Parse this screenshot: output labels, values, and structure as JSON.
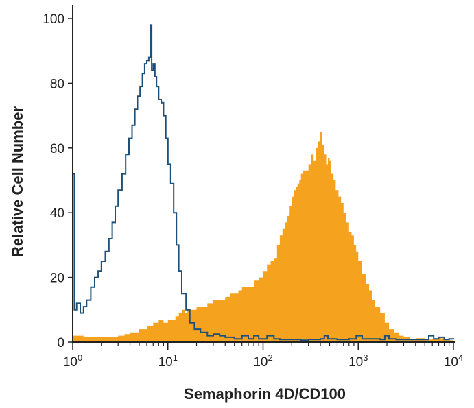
{
  "chart_data": {
    "type": "area",
    "xlabel": "Semaphorin 4D/CD100",
    "ylabel": "Relative Cell Number",
    "x_scale": "log10",
    "xlim": [
      1,
      10000
    ],
    "ylim": [
      0,
      100
    ],
    "x_ticks": [
      {
        "value": 1,
        "base": "10",
        "exp": "0"
      },
      {
        "value": 10,
        "base": "10",
        "exp": "1"
      },
      {
        "value": 100,
        "base": "10",
        "exp": "2"
      },
      {
        "value": 1000,
        "base": "10",
        "exp": "3"
      },
      {
        "value": 10000,
        "base": "10",
        "exp": "4"
      }
    ],
    "y_ticks": [
      0,
      20,
      40,
      60,
      80,
      100
    ],
    "grid": false,
    "legend": "none",
    "series": [
      {
        "style": "outline",
        "color": "#1c4f7a",
        "points": [
          [
            1.0,
            52
          ],
          [
            1.02,
            52
          ],
          [
            1.04,
            10
          ],
          [
            1.1,
            12
          ],
          [
            1.2,
            9
          ],
          [
            1.3,
            11
          ],
          [
            1.4,
            13
          ],
          [
            1.55,
            17
          ],
          [
            1.7,
            20
          ],
          [
            1.85,
            22
          ],
          [
            2.0,
            25
          ],
          [
            2.2,
            28
          ],
          [
            2.4,
            32
          ],
          [
            2.6,
            37
          ],
          [
            2.8,
            42
          ],
          [
            3.0,
            47
          ],
          [
            3.3,
            52
          ],
          [
            3.6,
            58
          ],
          [
            3.9,
            63
          ],
          [
            4.2,
            67
          ],
          [
            4.5,
            72
          ],
          [
            4.8,
            76
          ],
          [
            5.1,
            79
          ],
          [
            5.4,
            83
          ],
          [
            5.7,
            86
          ],
          [
            6.0,
            87
          ],
          [
            6.3,
            88
          ],
          [
            6.55,
            98
          ],
          [
            6.75,
            84
          ],
          [
            7.0,
            86
          ],
          [
            7.3,
            82
          ],
          [
            7.6,
            79
          ],
          [
            8.0,
            75
          ],
          [
            8.5,
            74
          ],
          [
            9.0,
            70
          ],
          [
            9.5,
            63
          ],
          [
            10.0,
            55
          ],
          [
            10.7,
            49
          ],
          [
            11.5,
            40
          ],
          [
            12.3,
            30
          ],
          [
            13.0,
            22
          ],
          [
            14.0,
            15
          ],
          [
            15.5,
            10
          ],
          [
            17.0,
            6
          ],
          [
            19.0,
            4
          ],
          [
            22,
            3
          ],
          [
            26,
            2
          ],
          [
            30,
            2.5
          ],
          [
            35,
            2
          ],
          [
            40,
            1.5
          ],
          [
            50,
            1
          ],
          [
            60,
            2
          ],
          [
            70,
            1
          ],
          [
            80,
            2
          ],
          [
            90,
            1
          ],
          [
            100,
            1
          ],
          [
            110,
            2
          ],
          [
            130,
            1
          ],
          [
            150,
            0.8
          ],
          [
            200,
            0.8
          ],
          [
            250,
            0.6
          ],
          [
            300,
            0.8
          ],
          [
            400,
            1
          ],
          [
            440,
            2
          ],
          [
            480,
            1
          ],
          [
            600,
            0.8
          ],
          [
            800,
            1
          ],
          [
            950,
            2
          ],
          [
            1100,
            1
          ],
          [
            1400,
            1
          ],
          [
            1700,
            0.8
          ],
          [
            1900,
            2
          ],
          [
            2100,
            1
          ],
          [
            2500,
            0.8
          ],
          [
            3500,
            0.8
          ],
          [
            4500,
            0.8
          ],
          [
            5500,
            2
          ],
          [
            6200,
            1
          ],
          [
            7000,
            1.5
          ],
          [
            8000,
            0.8
          ],
          [
            9000,
            1
          ],
          [
            10000,
            0.8
          ]
        ]
      },
      {
        "style": "filled",
        "color": "#f5a31f",
        "points": [
          [
            1.0,
            2
          ],
          [
            1.1,
            2
          ],
          [
            1.3,
            1.5
          ],
          [
            1.6,
            1.5
          ],
          [
            2.0,
            1.5
          ],
          [
            2.5,
            1.5
          ],
          [
            3.0,
            2
          ],
          [
            3.5,
            2.5
          ],
          [
            4.0,
            3
          ],
          [
            4.5,
            3
          ],
          [
            5.0,
            4
          ],
          [
            6.0,
            5
          ],
          [
            7.0,
            6
          ],
          [
            8.0,
            7
          ],
          [
            9.0,
            6
          ],
          [
            10.0,
            7
          ],
          [
            11.0,
            7
          ],
          [
            12.0,
            8
          ],
          [
            13.0,
            9
          ],
          [
            14.0,
            10
          ],
          [
            15.0,
            9
          ],
          [
            16.0,
            10
          ],
          [
            18.0,
            10
          ],
          [
            20.0,
            11
          ],
          [
            23.0,
            11
          ],
          [
            26.0,
            12
          ],
          [
            30.0,
            13
          ],
          [
            35.0,
            13
          ],
          [
            40.0,
            14
          ],
          [
            45.0,
            15
          ],
          [
            50.0,
            15
          ],
          [
            55.0,
            16
          ],
          [
            60.0,
            17
          ],
          [
            70.0,
            17
          ],
          [
            80.0,
            19
          ],
          [
            90.0,
            20
          ],
          [
            100.0,
            22
          ],
          [
            110.0,
            24
          ],
          [
            120.0,
            25
          ],
          [
            130.0,
            26
          ],
          [
            140.0,
            30
          ],
          [
            150.0,
            33
          ],
          [
            160.0,
            35
          ],
          [
            170.0,
            37
          ],
          [
            180.0,
            39
          ],
          [
            190.0,
            42
          ],
          [
            200.0,
            45
          ],
          [
            210.0,
            47
          ],
          [
            220.0,
            48
          ],
          [
            230.0,
            49
          ],
          [
            240.0,
            50
          ],
          [
            250.0,
            52
          ],
          [
            260.0,
            53
          ],
          [
            280.0,
            53
          ],
          [
            300.0,
            55
          ],
          [
            320.0,
            58
          ],
          [
            340.0,
            56
          ],
          [
            360.0,
            60
          ],
          [
            380.0,
            62
          ],
          [
            400.0,
            65
          ],
          [
            420.0,
            61
          ],
          [
            440.0,
            58
          ],
          [
            460.0,
            55
          ],
          [
            480.0,
            57
          ],
          [
            500.0,
            56
          ],
          [
            520.0,
            52
          ],
          [
            550.0,
            50
          ],
          [
            580.0,
            47
          ],
          [
            620.0,
            45
          ],
          [
            660.0,
            43
          ],
          [
            700.0,
            40
          ],
          [
            750.0,
            37
          ],
          [
            800.0,
            34
          ],
          [
            850.0,
            33
          ],
          [
            900.0,
            30
          ],
          [
            950.0,
            28
          ],
          [
            1000.0,
            25
          ],
          [
            1100.0,
            21
          ],
          [
            1200.0,
            18
          ],
          [
            1300.0,
            16
          ],
          [
            1400.0,
            13
          ],
          [
            1500.0,
            11
          ],
          [
            1700.0,
            9
          ],
          [
            1900.0,
            6
          ],
          [
            2100.0,
            4
          ],
          [
            2400.0,
            3
          ],
          [
            2700.0,
            2
          ],
          [
            3000.0,
            1.5
          ],
          [
            3500.0,
            1
          ],
          [
            4000.0,
            1.2
          ],
          [
            5000.0,
            0.8
          ],
          [
            6000.0,
            1
          ],
          [
            7000.0,
            1.2
          ],
          [
            8000.0,
            0.6
          ],
          [
            10000.0,
            0.5
          ]
        ]
      }
    ]
  }
}
